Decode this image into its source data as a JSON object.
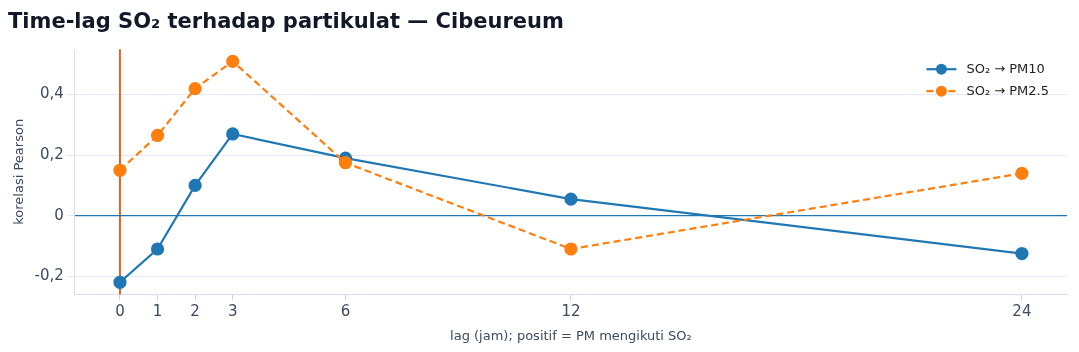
{
  "chart_data": {
    "type": "line",
    "title": "Time-lag SO₂ terhadap partikulat — Cibeureum",
    "xlabel": "lag (jam); positif = PM mengikuti SO₂",
    "ylabel": "korelasi Pearson",
    "x": [
      0,
      1,
      2,
      3,
      6,
      12,
      24
    ],
    "series": [
      {
        "name": "SO₂ → PM10",
        "color": "#1f77b4",
        "line_style": "solid",
        "values": [
          -0.22,
          -0.11,
          0.1,
          0.27,
          0.19,
          0.055,
          -0.125
        ]
      },
      {
        "name": "SO₂ → PM2.5",
        "color": "#ff7f0e",
        "line_style": "dashed",
        "values": [
          0.15,
          0.265,
          0.42,
          0.51,
          0.175,
          -0.11,
          0.14
        ]
      }
    ],
    "xlim": [
      -1.2,
      25.2
    ],
    "xticks": [
      0,
      1,
      2,
      3,
      6,
      12,
      24
    ],
    "ylim": [
      -0.26,
      0.55
    ],
    "yticks": [
      {
        "value": -0.2,
        "label": "-0,2"
      },
      {
        "value": 0,
        "label": "0"
      },
      {
        "value": 0.2,
        "label": "0,2"
      },
      {
        "value": 0.4,
        "label": "0,4"
      }
    ],
    "ref_lines": [
      {
        "axis": "x",
        "value": 0,
        "color": "#e6550d"
      },
      {
        "axis": "y",
        "value": 0,
        "color": "#1f77b4"
      }
    ],
    "grid": "y",
    "legend": "top right",
    "marker": "circle"
  }
}
